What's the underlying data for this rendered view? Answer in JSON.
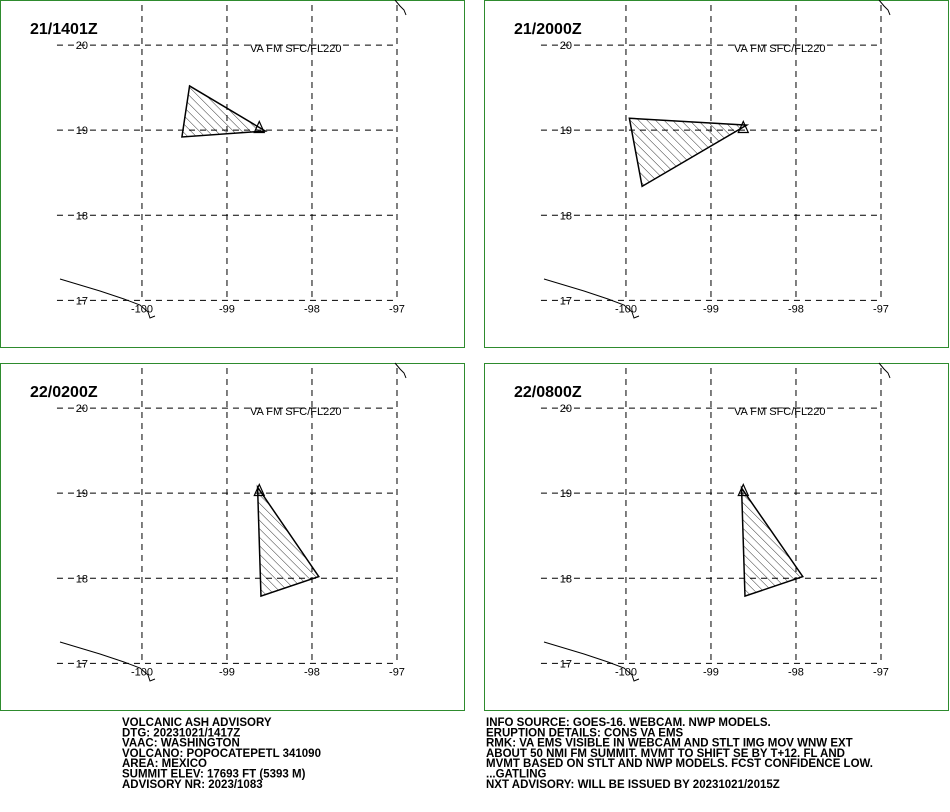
{
  "panels": [
    {
      "time": "21/1401Z",
      "layer": "VA FM SFC/FL220",
      "polygon": {
        "lon": [
          -99.44,
          -98.55,
          -99.53
        ],
        "lat": [
          19.52,
          18.99,
          18.92
        ]
      }
    },
    {
      "time": "21/2000Z",
      "layer": "VA FM SFC/FL220",
      "polygon": {
        "lon": [
          -99.96,
          -98.58,
          -99.81
        ],
        "lat": [
          19.14,
          19.06,
          18.34
        ]
      }
    },
    {
      "time": "22/0200Z",
      "layer": "VA FM SFC/FL220",
      "polygon": {
        "lon": [
          -98.64,
          -97.92,
          -98.6
        ],
        "lat": [
          19.07,
          18.02,
          17.79
        ]
      }
    },
    {
      "time": "22/0800Z",
      "layer": "VA FM SFC/FL220",
      "polygon": {
        "lon": [
          -98.64,
          -97.92,
          -98.6
        ],
        "lat": [
          19.06,
          18.02,
          17.79
        ]
      }
    }
  ],
  "lon_range": [
    -101.67,
    -96.2
  ],
  "lat_range": [
    20.53,
    16.44
  ],
  "lon_ticks": [
    -100,
    -99,
    -98,
    -97
  ],
  "lat_ticks": [
    20,
    19,
    18,
    17
  ],
  "volcano": {
    "lon": -98.62,
    "lat": 19.02
  },
  "advisory_left": [
    "VOLCANIC ASH ADVISORY",
    "DTG: 20231021/1417Z",
    "VAAC: WASHINGTON",
    "VOLCANO: POPOCATEPETL 341090",
    "AREA: MEXICO",
    "SUMMIT ELEV: 17693 FT (5393 M)",
    "ADVISORY NR: 2023/1083"
  ],
  "advisory_right": [
    "INFO SOURCE: GOES-16. WEBCAM. NWP MODELS.",
    "ERUPTION DETAILS: CONS VA EMS",
    "RMK: VA EMS VISIBLE IN WEBCAM AND STLT IMG MOV WNW EXT",
    "ABOUT 50 NMI FM SUMMIT. MVMT TO SHIFT SE BY T+12. FL AND",
    "MVMT BASED ON STLT AND NWP MODELS. FCST CONFIDENCE LOW.",
    "...GATLING",
    "NXT ADVISORY: WILL BE ISSUED BY 20231021/2015Z"
  ]
}
